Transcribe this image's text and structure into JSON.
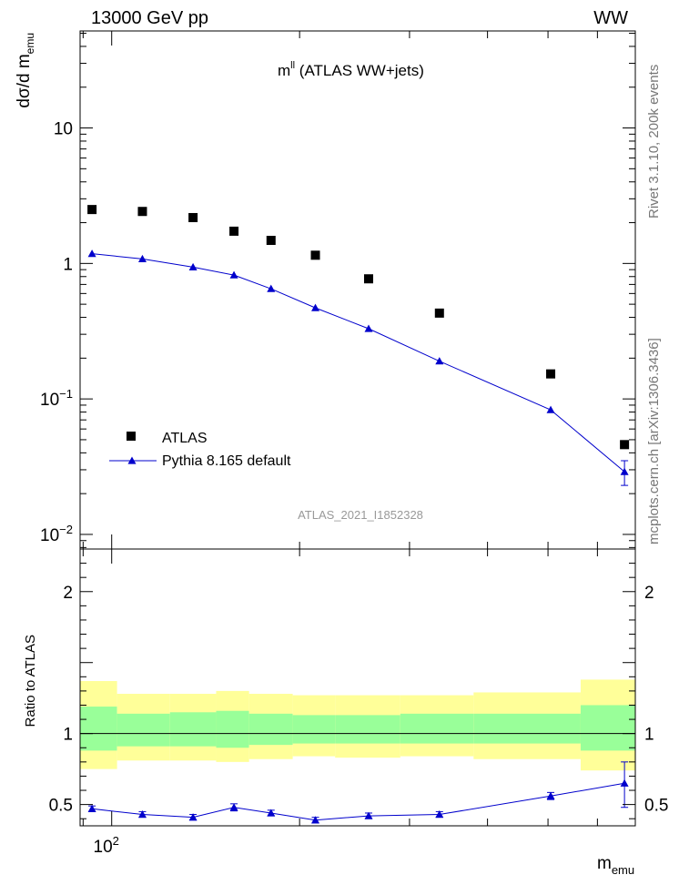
{
  "header": {
    "left": "13000 GeV pp",
    "right": "WW"
  },
  "side_labels": {
    "rivet": "Rivet 3.1.10,  200k events",
    "source": "mcplots.cern.ch [arXiv:1306.3436]"
  },
  "colors": {
    "data": "#000000",
    "mc": "#0000cc",
    "band_inner": "#99ff99",
    "band_outer": "#ffff99"
  },
  "chart_data": [
    {
      "type": "scatter",
      "panel": "main",
      "title": "m^ll (ATLAS WW+jets)",
      "title_main": "m",
      "title_sup": "ll",
      "title_rest": " (ATLAS WW+jets)",
      "ylabel": "dσ/d m",
      "ylabel_sub": "emu",
      "analysis_tag": "ATLAS_2021_I1852328",
      "y_log": true,
      "x_log": true,
      "xlim": [
        89,
        690
      ],
      "ylim": [
        0.0078,
        52
      ],
      "y_ticks": [
        {
          "value": 10,
          "label": "10"
        },
        {
          "value": 1,
          "label": "1"
        },
        {
          "value": 0.1,
          "label": "10",
          "sup": "−1"
        },
        {
          "value": 0.01,
          "label": "10",
          "sup": "−2"
        }
      ],
      "legend_position": "middle-left",
      "series": [
        {
          "name": "ATLAS",
          "marker": "square",
          "x": [
            93,
            112,
            135,
            157,
            180,
            212,
            258,
            335,
            505,
            663
          ],
          "y": [
            2.5,
            2.42,
            2.18,
            1.73,
            1.48,
            1.15,
            0.77,
            0.43,
            0.153,
            0.046
          ]
        },
        {
          "name": "Pythia 8.165 default",
          "marker": "triangle",
          "x": [
            93,
            112,
            135,
            157,
            180,
            212,
            258,
            335,
            505,
            663
          ],
          "y": [
            1.18,
            1.08,
            0.94,
            0.82,
            0.65,
            0.47,
            0.33,
            0.19,
            0.083,
            0.029
          ],
          "y_err_low": [
            0,
            0,
            0,
            0,
            0,
            0,
            0,
            0,
            0,
            0.006
          ],
          "y_err_high": [
            0,
            0,
            0,
            0,
            0,
            0,
            0,
            0,
            0,
            0.006
          ]
        }
      ]
    },
    {
      "type": "line",
      "panel": "ratio",
      "ylabel": "Ratio to ATLAS",
      "xlabel": "m",
      "xlabel_sub": "emu",
      "x_log": true,
      "xlim": [
        89,
        690
      ],
      "ylim": [
        0.35,
        2.3
      ],
      "y_ticks": [
        {
          "value": 2,
          "label": "2"
        },
        {
          "value": 1,
          "label": "1"
        },
        {
          "value": 0.5,
          "label": "0.5"
        }
      ],
      "x_ticks": [
        {
          "value": 100,
          "label": "10",
          "sup": "2"
        }
      ],
      "bands": [
        {
          "x0": 89,
          "x1": 102,
          "inner": [
            0.88,
            1.19
          ],
          "outer": [
            0.75,
            1.37
          ]
        },
        {
          "x0": 102,
          "x1": 124,
          "inner": [
            0.91,
            1.14
          ],
          "outer": [
            0.81,
            1.28
          ]
        },
        {
          "x0": 124,
          "x1": 147,
          "inner": [
            0.91,
            1.15
          ],
          "outer": [
            0.81,
            1.28
          ]
        },
        {
          "x0": 147,
          "x1": 166,
          "inner": [
            0.9,
            1.16
          ],
          "outer": [
            0.8,
            1.3
          ]
        },
        {
          "x0": 166,
          "x1": 195,
          "inner": [
            0.92,
            1.14
          ],
          "outer": [
            0.82,
            1.28
          ]
        },
        {
          "x0": 195,
          "x1": 228,
          "inner": [
            0.93,
            1.13
          ],
          "outer": [
            0.84,
            1.27
          ]
        },
        {
          "x0": 228,
          "x1": 290,
          "inner": [
            0.93,
            1.13
          ],
          "outer": [
            0.83,
            1.27
          ]
        },
        {
          "x0": 290,
          "x1": 380,
          "inner": [
            0.93,
            1.14
          ],
          "outer": [
            0.84,
            1.27
          ]
        },
        {
          "x0": 380,
          "x1": 564,
          "inner": [
            0.93,
            1.14
          ],
          "outer": [
            0.82,
            1.29
          ]
        },
        {
          "x0": 564,
          "x1": 690,
          "inner": [
            0.88,
            1.2
          ],
          "outer": [
            0.74,
            1.38
          ]
        }
      ],
      "series": [
        {
          "name": "Pythia 8.165 default",
          "x": [
            93,
            112,
            135,
            157,
            180,
            212,
            258,
            335,
            505,
            663
          ],
          "y": [
            0.47,
            0.43,
            0.41,
            0.48,
            0.44,
            0.39,
            0.42,
            0.43,
            0.56,
            0.65
          ],
          "y_err_low": [
            0.02,
            0.02,
            0.02,
            0.025,
            0.02,
            0.02,
            0.02,
            0.02,
            0.025,
            0.17
          ],
          "y_err_high": [
            0.02,
            0.02,
            0.02,
            0.025,
            0.02,
            0.02,
            0.02,
            0.02,
            0.025,
            0.15
          ]
        }
      ]
    }
  ]
}
